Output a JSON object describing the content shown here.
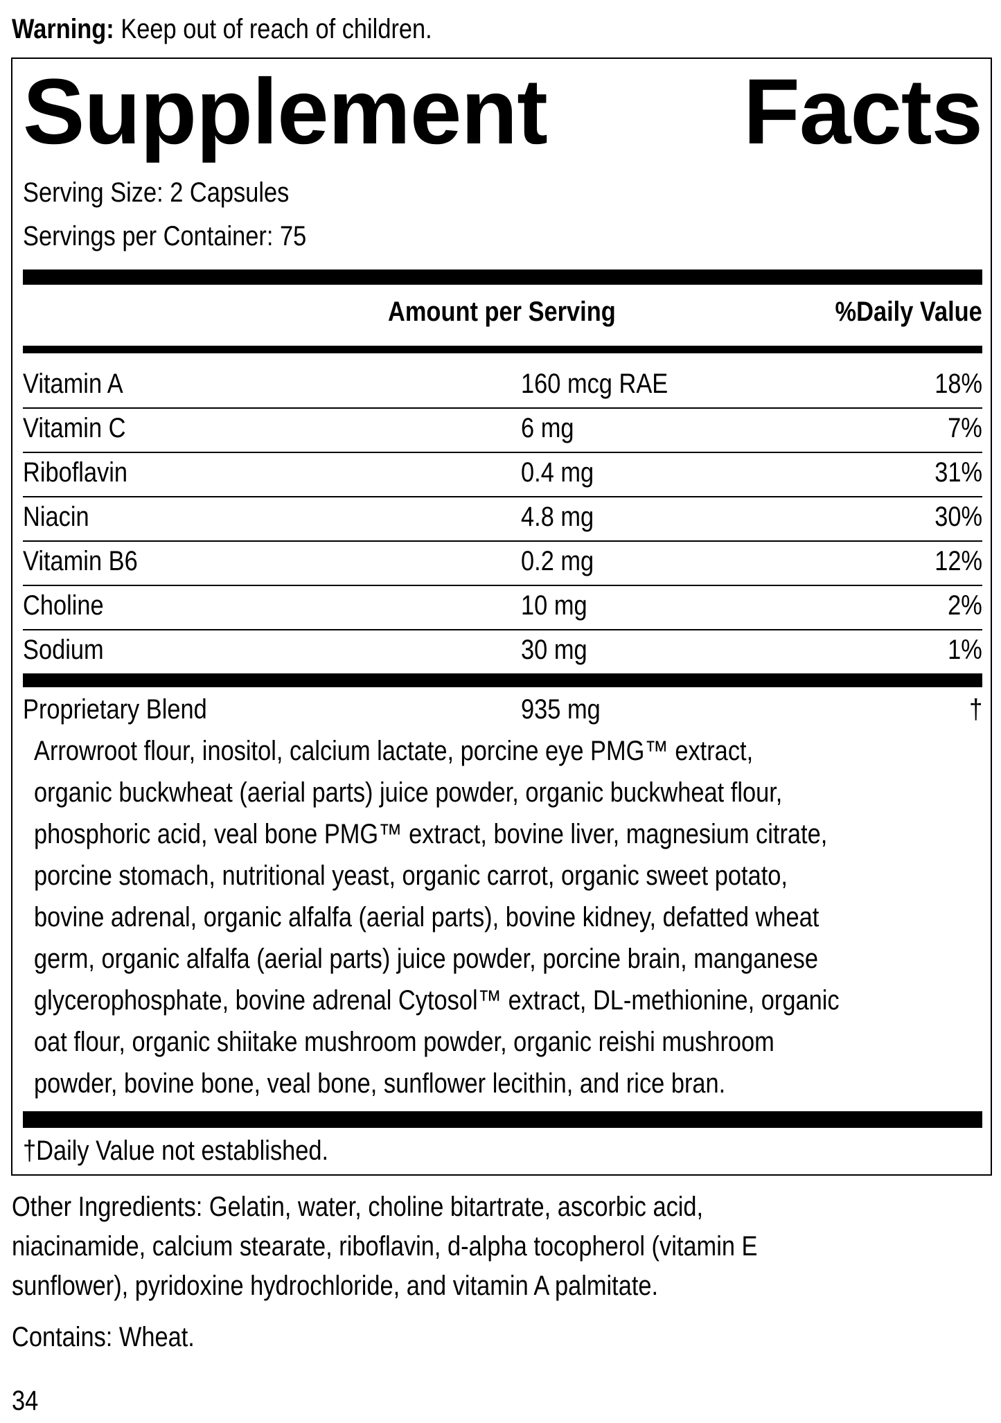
{
  "warning": {
    "label": "Warning:",
    "text": " Keep out of reach of children."
  },
  "title": {
    "word1": "Supplement",
    "word2": "Facts"
  },
  "serving_size": "Serving Size: 2 Capsules",
  "servings_per_container": "Servings per Container: 75",
  "header": {
    "amount": "Amount per Serving",
    "dv": "%Daily Value"
  },
  "nutrients": [
    {
      "name": "Vitamin A",
      "amount": "160 mcg RAE",
      "dv": "18%"
    },
    {
      "name": "Vitamin C",
      "amount": "6 mg",
      "dv": "7%"
    },
    {
      "name": "Riboflavin",
      "amount": "0.4 mg",
      "dv": "31%"
    },
    {
      "name": "Niacin",
      "amount": "4.8 mg",
      "dv": "30%"
    },
    {
      "name": "Vitamin B6",
      "amount": "0.2 mg",
      "dv": "12%"
    },
    {
      "name": "Choline",
      "amount": "10 mg",
      "dv": "2%"
    },
    {
      "name": "Sodium",
      "amount": "30 mg",
      "dv": "1%"
    }
  ],
  "blend": {
    "name": "Proprietary Blend",
    "amount": "935 mg",
    "dv": "†",
    "ingredients": [
      "Arrowroot flour, inositol, calcium lactate, porcine eye PMG™ extract,",
      "organic buckwheat (aerial parts) juice powder, organic buckwheat flour,",
      "phosphoric acid, veal bone PMG™ extract, bovine liver, magnesium citrate,",
      "porcine stomach, nutritional yeast, organic carrot, organic sweet potato,",
      "bovine adrenal, organic alfalfa (aerial parts), bovine kidney, defatted wheat",
      "germ, organic alfalfa (aerial parts) juice powder, porcine brain, manganese",
      "glycerophosphate, bovine adrenal Cytosol™ extract, DL-methionine, organic",
      "oat flour, organic shiitake mushroom powder, organic reishi mushroom",
      "powder, bovine bone, veal bone, sunflower lecithin, and rice bran."
    ]
  },
  "footnote": "†Daily Value not established.",
  "other_ingredients": [
    "Other Ingredients: Gelatin, water, choline bitartrate, ascorbic acid,",
    "niacinamide, calcium stearate, riboflavin, d-alpha tocopherol (vitamin E",
    "sunflower), pyridoxine hydrochloride, and vitamin A palmitate."
  ],
  "contains": "Contains: Wheat.",
  "page_number": "34"
}
